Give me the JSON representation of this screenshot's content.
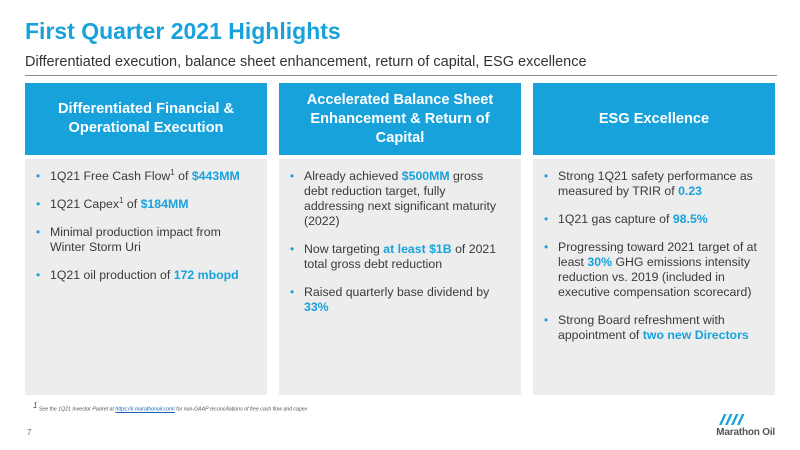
{
  "title": "First Quarter 2021 Highlights",
  "subtitle": "Differentiated execution, balance sheet enhancement, return of capital, ESG excellence",
  "colors": {
    "accent": "#17a2dc",
    "panel": "#ededed"
  },
  "columns": [
    {
      "header": "Differentiated Financial & Operational Execution",
      "bullets": [
        {
          "parts": [
            {
              "text": "1Q21 Free Cash Flow"
            },
            {
              "text": "1",
              "sup": true
            },
            {
              "text": " of "
            },
            {
              "text": "$443MM",
              "hl": true
            }
          ]
        },
        {
          "parts": [
            {
              "text": "1Q21 Capex"
            },
            {
              "text": "1",
              "sup": true
            },
            {
              "text": " of "
            },
            {
              "text": "$184MM",
              "hl": true
            }
          ]
        },
        {
          "parts": [
            {
              "text": "Minimal production impact from Winter Storm Uri"
            }
          ]
        },
        {
          "parts": [
            {
              "text": "1Q21 oil production of "
            },
            {
              "text": "172 mbopd",
              "hl": true
            }
          ]
        }
      ]
    },
    {
      "header": "Accelerated Balance Sheet Enhancement & Return of Capital",
      "bullets": [
        {
          "parts": [
            {
              "text": "Already achieved "
            },
            {
              "text": "$500MM",
              "hl": true
            },
            {
              "text": " gross debt reduction target, fully addressing next significant maturity (2022)"
            }
          ]
        },
        {
          "parts": [
            {
              "text": "Now targeting "
            },
            {
              "text": "at least $1B",
              "hl": true
            },
            {
              "text": " of 2021 total gross debt reduction"
            }
          ]
        },
        {
          "parts": [
            {
              "text": "Raised quarterly base dividend by "
            },
            {
              "text": "33%",
              "hl": true
            }
          ]
        }
      ]
    },
    {
      "header": "ESG Excellence",
      "bullets": [
        {
          "parts": [
            {
              "text": "Strong 1Q21 safety performance as measured by TRIR of "
            },
            {
              "text": "0.23",
              "hl": true
            }
          ]
        },
        {
          "parts": [
            {
              "text": "1Q21 gas capture of "
            },
            {
              "text": "98.5%",
              "hl": true
            }
          ]
        },
        {
          "parts": [
            {
              "text": "Progressing toward 2021 target of at least "
            },
            {
              "text": "30%",
              "hl": true
            },
            {
              "text": " GHG emissions intensity reduction vs. 2019 (included in executive compensation scorecard)"
            }
          ]
        },
        {
          "parts": [
            {
              "text": "Strong Board refreshment with appointment of "
            },
            {
              "text": "two new Directors",
              "hl": true
            }
          ]
        }
      ]
    }
  ],
  "footnote": {
    "marker": "1",
    "prefix": " See the 1Q21 Investor Packet at ",
    "link_text": "https://ir.marathonoil.com/",
    "suffix": " for non-GAAP reconciliations of free cash flow and capex"
  },
  "page_number": "7",
  "logo": {
    "text": "Marathon Oil",
    "icon": "marathon-oil-logo-icon"
  }
}
